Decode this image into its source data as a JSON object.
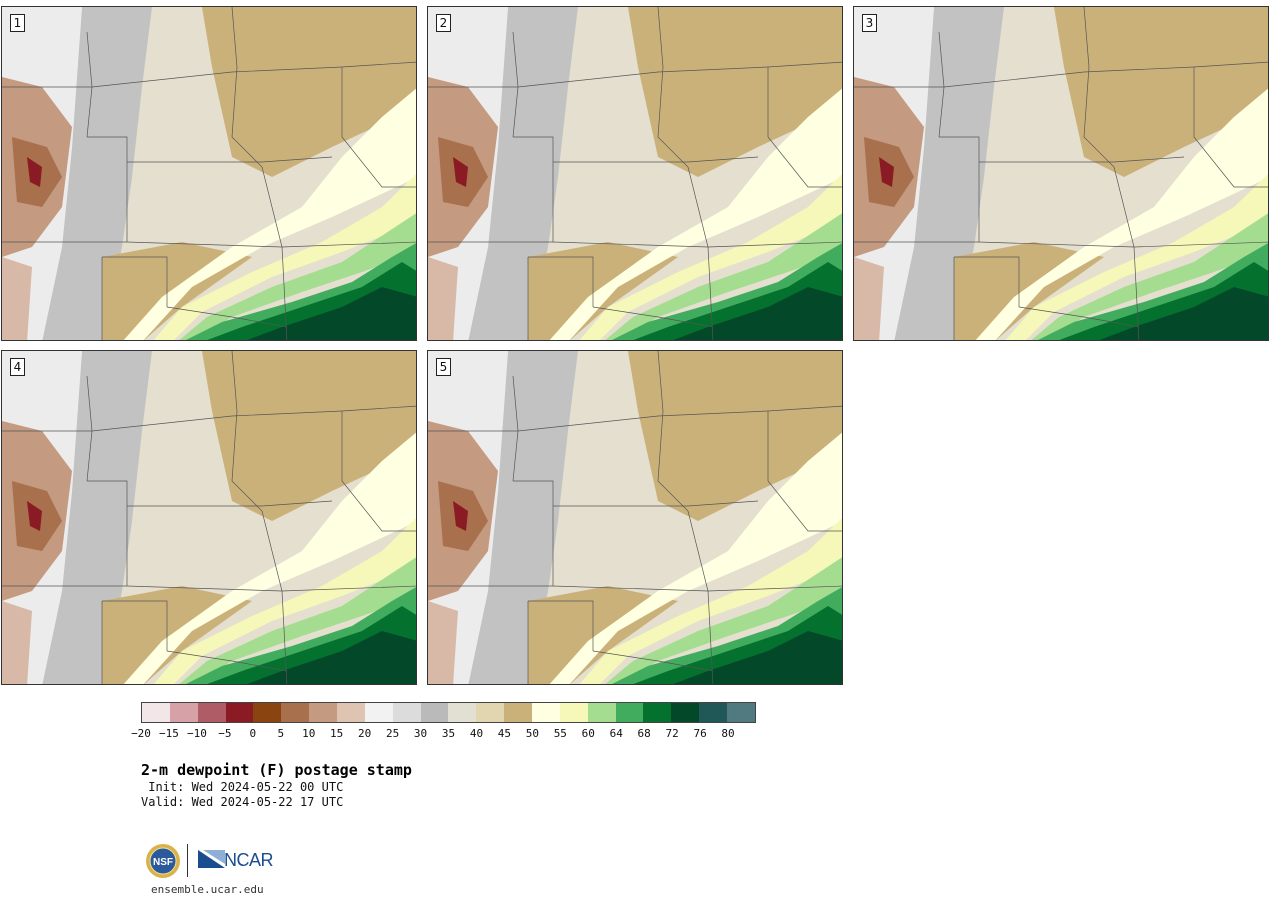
{
  "panels": [
    {
      "label": "1"
    },
    {
      "label": "2"
    },
    {
      "label": "3"
    },
    {
      "label": "4"
    },
    {
      "label": "5"
    }
  ],
  "colorbar": {
    "colors": [
      "#f2e6e8",
      "#d6a2a8",
      "#b05c66",
      "#8a1a24",
      "#8a4410",
      "#a8704c",
      "#c49a80",
      "#e0c4b2",
      "#f2f2f2",
      "#dcdcdc",
      "#bababa",
      "#e2e0d2",
      "#e2d6b0",
      "#cab17a",
      "#ffffe2",
      "#f5f8b8",
      "#a4dc90",
      "#42ac5e",
      "#04722e",
      "#04482a",
      "#205858",
      "#507a80"
    ],
    "tick_labels": [
      "−20",
      "−15",
      "−10",
      "−5",
      "0",
      "5",
      "10",
      "15",
      "20",
      "25",
      "30",
      "35",
      "40",
      "45",
      "50",
      "55",
      "60",
      "64",
      "68",
      "72",
      "76",
      "80"
    ]
  },
  "title": "2-m dewpoint (F) postage stamp",
  "init": " Init: Wed 2024-05-22 00 UTC",
  "valid": "Valid: Wed 2024-05-22 17 UTC",
  "logos": {
    "nsf_text": "NSF",
    "ncar_text": "NCAR"
  },
  "site_url": "ensemble.ucar.edu"
}
